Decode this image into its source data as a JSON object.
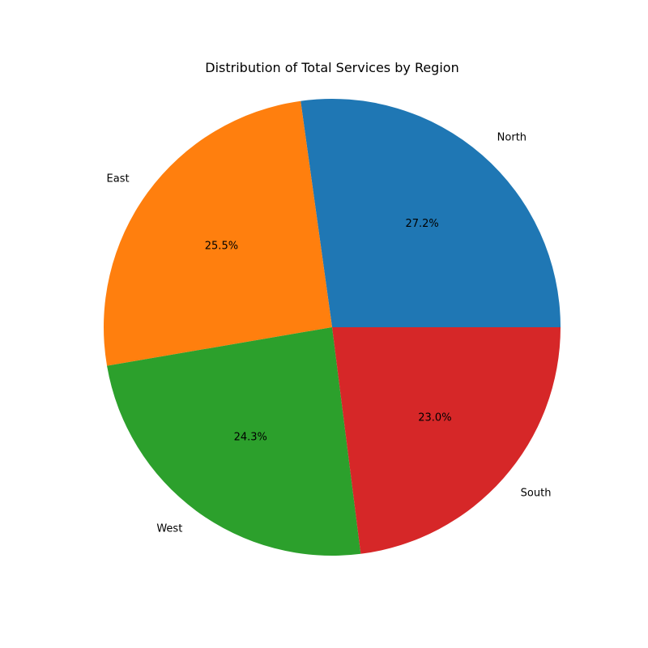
{
  "chart_data": {
    "type": "pie",
    "title": "Distribution of Total Services by Region",
    "slices": [
      {
        "label": "North",
        "value": 27.2,
        "pct_text": "27.2%",
        "color": "#1f77b4"
      },
      {
        "label": "East",
        "value": 25.5,
        "pct_text": "25.5%",
        "color": "#ff7f0e"
      },
      {
        "label": "West",
        "value": 24.3,
        "pct_text": "24.3%",
        "color": "#2ca02c"
      },
      {
        "label": "South",
        "value": 23.0,
        "pct_text": "23.0%",
        "color": "#d62728"
      }
    ],
    "start_angle_deg": 0,
    "direction": "counterclockwise",
    "legend": "none"
  }
}
